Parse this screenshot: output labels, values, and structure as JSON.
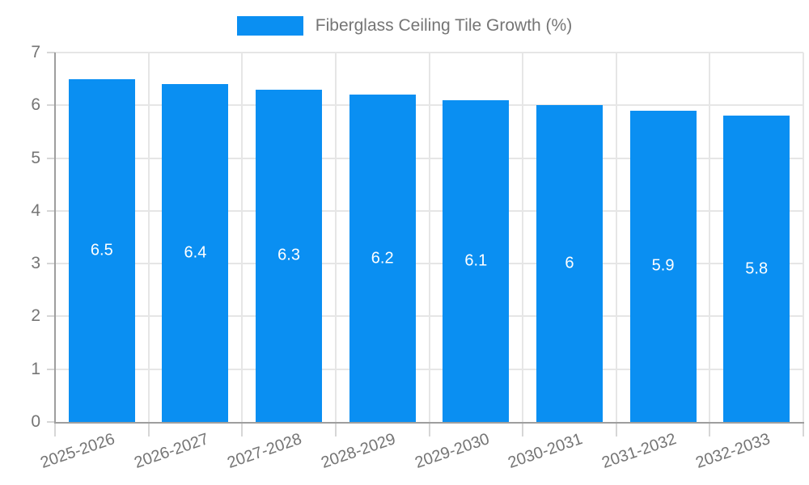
{
  "chart_data": {
    "type": "bar",
    "title": "Fiberglass Ceiling Tile Growth (%)",
    "legend": {
      "position": "top-center",
      "label": "Fiberglass Ceiling Tile Growth (%)"
    },
    "categories": [
      "2025-2026",
      "2026-2027",
      "2027-2028",
      "2028-2029",
      "2029-2030",
      "2030-2031",
      "2031-2032",
      "2032-2033"
    ],
    "values": [
      6.5,
      6.4,
      6.3,
      6.2,
      6.1,
      6,
      5.9,
      5.8
    ],
    "value_labels": [
      "6.5",
      "6.4",
      "6.3",
      "6.2",
      "6.1",
      "6",
      "5.9",
      "5.8"
    ],
    "xlabel": "",
    "ylabel": "",
    "ylim": [
      0,
      7
    ],
    "yticks": [
      0,
      1,
      2,
      3,
      4,
      5,
      6,
      7
    ],
    "grid": true,
    "colors": {
      "bar": "#0a8ff2",
      "bar_value_text": "#ffffff",
      "axis_text": "#757575",
      "axis_line": "#9e9e9e",
      "gridline": "#e6e6e6",
      "tick_mark": "#d6d6d6",
      "background": "#ffffff"
    }
  }
}
